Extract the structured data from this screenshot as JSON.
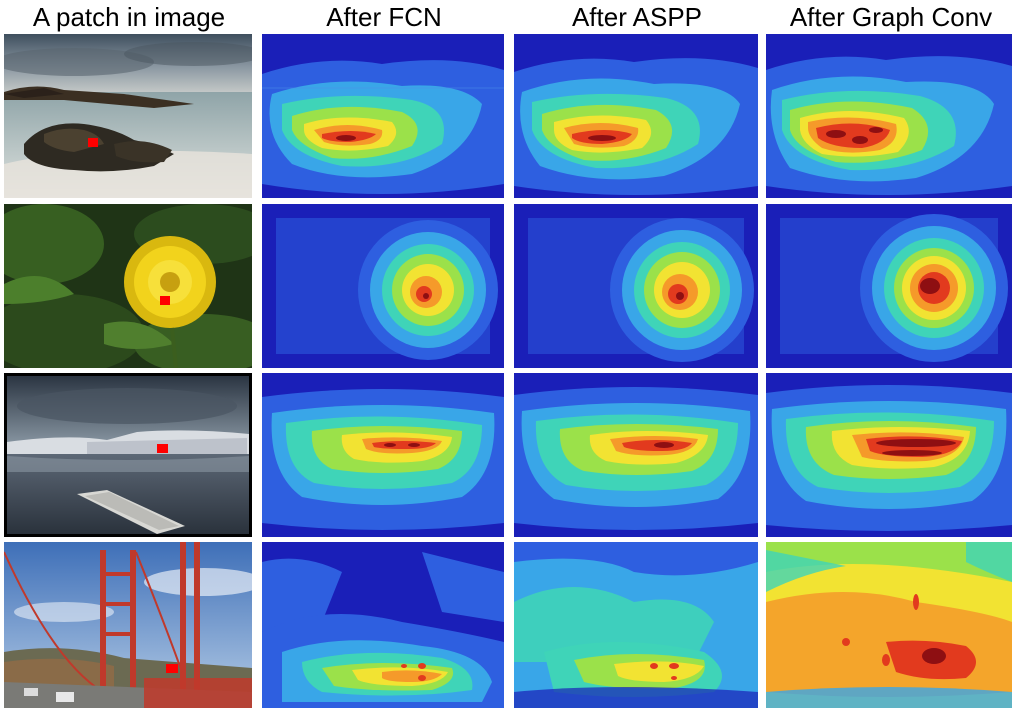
{
  "figure": {
    "columns": [
      {
        "title": "A patch in image"
      },
      {
        "title": "After FCN"
      },
      {
        "title": "After ASPP"
      },
      {
        "title": "After Graph Conv"
      }
    ],
    "rows": [
      {
        "scene": "beach-rocks",
        "patch_marker_color": "#ff0000"
      },
      {
        "scene": "dandelion-flower",
        "patch_marker_color": "#ff0000"
      },
      {
        "scene": "snowy-lake-dock",
        "patch_marker_color": "#ff0000"
      },
      {
        "scene": "golden-gate-bridge",
        "patch_marker_color": "#ff0000"
      }
    ],
    "colormap": [
      "#1a1fb8",
      "#2e5fe0",
      "#39a6e8",
      "#3fd4b8",
      "#9be14a",
      "#f2e332",
      "#f59a2a",
      "#e23a1e",
      "#8e0f12"
    ]
  }
}
